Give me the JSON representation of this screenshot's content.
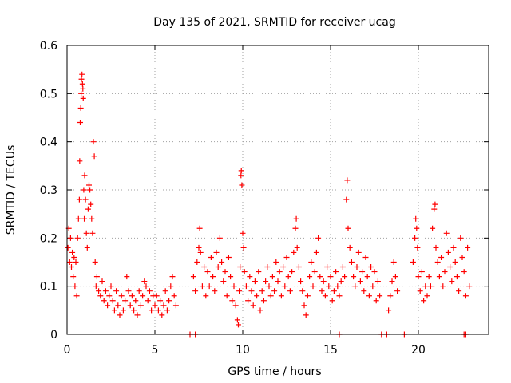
{
  "chart_data": {
    "type": "scatter",
    "title": "Day 135 of 2021, SRMTID for receiver ucag",
    "xlabel": "GPS time / hours",
    "ylabel": "SRMTID / TECUs",
    "xlim": [
      0,
      24
    ],
    "ylim": [
      0,
      0.6
    ],
    "xticks": [
      0,
      5,
      10,
      15,
      20
    ],
    "xtick_labels": [
      "0",
      "5",
      "10",
      "15",
      "20"
    ],
    "yticks": [
      0,
      0.1,
      0.2,
      0.3,
      0.4,
      0.5,
      0.6
    ],
    "ytick_labels": [
      "0",
      "0.1",
      "0.2",
      "0.3",
      "0.4",
      "0.5",
      "0.6"
    ],
    "grid": true,
    "marker": "plus",
    "color": "#ff0000",
    "series": [
      {
        "name": "SRMTID",
        "points": [
          [
            0.05,
            0.18
          ],
          [
            0.1,
            0.22
          ],
          [
            0.15,
            0.15
          ],
          [
            0.2,
            0.2
          ],
          [
            0.25,
            0.14
          ],
          [
            0.3,
            0.17
          ],
          [
            0.35,
            0.12
          ],
          [
            0.4,
            0.16
          ],
          [
            0.45,
            0.1
          ],
          [
            0.5,
            0.15
          ],
          [
            0.55,
            0.08
          ],
          [
            0.6,
            0.2
          ],
          [
            0.65,
            0.24
          ],
          [
            0.7,
            0.28
          ],
          [
            0.72,
            0.36
          ],
          [
            0.75,
            0.44
          ],
          [
            0.78,
            0.47
          ],
          [
            0.8,
            0.5
          ],
          [
            0.82,
            0.53
          ],
          [
            0.85,
            0.54
          ],
          [
            0.88,
            0.52
          ],
          [
            0.9,
            0.51
          ],
          [
            0.92,
            0.49
          ],
          [
            0.95,
            0.3
          ],
          [
            0.98,
            0.24
          ],
          [
            1.0,
            0.33
          ],
          [
            1.05,
            0.28
          ],
          [
            1.1,
            0.21
          ],
          [
            1.15,
            0.18
          ],
          [
            1.2,
            0.26
          ],
          [
            1.25,
            0.31
          ],
          [
            1.3,
            0.3
          ],
          [
            1.35,
            0.27
          ],
          [
            1.4,
            0.24
          ],
          [
            1.45,
            0.21
          ],
          [
            1.5,
            0.4
          ],
          [
            1.55,
            0.37
          ],
          [
            1.6,
            0.15
          ],
          [
            1.65,
            0.1
          ],
          [
            1.7,
            0.12
          ],
          [
            1.8,
            0.09
          ],
          [
            1.9,
            0.08
          ],
          [
            2.0,
            0.11
          ],
          [
            2.1,
            0.07
          ],
          [
            2.2,
            0.09
          ],
          [
            2.3,
            0.06
          ],
          [
            2.4,
            0.08
          ],
          [
            2.5,
            0.1
          ],
          [
            2.6,
            0.07
          ],
          [
            2.7,
            0.05
          ],
          [
            2.8,
            0.09
          ],
          [
            2.9,
            0.06
          ],
          [
            3.0,
            0.04
          ],
          [
            3.1,
            0.08
          ],
          [
            3.2,
            0.05
          ],
          [
            3.3,
            0.07
          ],
          [
            3.4,
            0.12
          ],
          [
            3.5,
            0.09
          ],
          [
            3.6,
            0.06
          ],
          [
            3.7,
            0.08
          ],
          [
            3.8,
            0.05
          ],
          [
            3.9,
            0.07
          ],
          [
            4.0,
            0.04
          ],
          [
            4.1,
            0.09
          ],
          [
            4.2,
            0.06
          ],
          [
            4.3,
            0.08
          ],
          [
            4.4,
            0.11
          ],
          [
            4.5,
            0.1
          ],
          [
            4.6,
            0.07
          ],
          [
            4.7,
            0.09
          ],
          [
            4.8,
            0.05
          ],
          [
            4.9,
            0.08
          ],
          [
            5.0,
            0.06
          ],
          [
            5.1,
            0.08
          ],
          [
            5.2,
            0.05
          ],
          [
            5.3,
            0.07
          ],
          [
            5.4,
            0.04
          ],
          [
            5.5,
            0.06
          ],
          [
            5.6,
            0.09
          ],
          [
            5.7,
            0.05
          ],
          [
            5.8,
            0.07
          ],
          [
            5.9,
            0.1
          ],
          [
            6.0,
            0.12
          ],
          [
            6.1,
            0.08
          ],
          [
            6.2,
            0.06
          ],
          [
            7.0,
            0.0
          ],
          [
            7.3,
            0.0
          ],
          [
            7.2,
            0.12
          ],
          [
            7.3,
            0.09
          ],
          [
            7.4,
            0.15
          ],
          [
            7.5,
            0.18
          ],
          [
            7.55,
            0.22
          ],
          [
            7.6,
            0.17
          ],
          [
            7.7,
            0.1
          ],
          [
            7.8,
            0.14
          ],
          [
            7.9,
            0.08
          ],
          [
            8.0,
            0.13
          ],
          [
            8.1,
            0.1
          ],
          [
            8.2,
            0.16
          ],
          [
            8.3,
            0.12
          ],
          [
            8.4,
            0.09
          ],
          [
            8.5,
            0.17
          ],
          [
            8.6,
            0.14
          ],
          [
            8.7,
            0.2
          ],
          [
            8.8,
            0.15
          ],
          [
            8.9,
            0.11
          ],
          [
            9.0,
            0.13
          ],
          [
            9.1,
            0.08
          ],
          [
            9.2,
            0.16
          ],
          [
            9.3,
            0.12
          ],
          [
            9.4,
            0.07
          ],
          [
            9.5,
            0.1
          ],
          [
            9.6,
            0.06
          ],
          [
            9.7,
            0.03
          ],
          [
            9.75,
            0.02
          ],
          [
            9.8,
            0.09
          ],
          [
            9.85,
            0.14
          ],
          [
            9.9,
            0.33
          ],
          [
            9.92,
            0.34
          ],
          [
            9.95,
            0.31
          ],
          [
            10.0,
            0.21
          ],
          [
            10.05,
            0.18
          ],
          [
            10.1,
            0.13
          ],
          [
            10.2,
            0.1
          ],
          [
            10.3,
            0.07
          ],
          [
            10.4,
            0.12
          ],
          [
            10.5,
            0.09
          ],
          [
            10.6,
            0.06
          ],
          [
            10.7,
            0.11
          ],
          [
            10.8,
            0.08
          ],
          [
            10.9,
            0.13
          ],
          [
            11.0,
            0.05
          ],
          [
            11.1,
            0.09
          ],
          [
            11.2,
            0.07
          ],
          [
            11.3,
            0.11
          ],
          [
            11.4,
            0.14
          ],
          [
            11.5,
            0.1
          ],
          [
            11.6,
            0.08
          ],
          [
            11.7,
            0.12
          ],
          [
            11.8,
            0.09
          ],
          [
            11.9,
            0.15
          ],
          [
            12.0,
            0.11
          ],
          [
            12.1,
            0.13
          ],
          [
            12.2,
            0.08
          ],
          [
            12.3,
            0.14
          ],
          [
            12.4,
            0.1
          ],
          [
            12.5,
            0.16
          ],
          [
            12.6,
            0.12
          ],
          [
            12.7,
            0.09
          ],
          [
            12.8,
            0.13
          ],
          [
            12.9,
            0.17
          ],
          [
            13.0,
            0.22
          ],
          [
            13.05,
            0.24
          ],
          [
            13.1,
            0.18
          ],
          [
            13.2,
            0.14
          ],
          [
            13.3,
            0.11
          ],
          [
            13.4,
            0.09
          ],
          [
            13.5,
            0.06
          ],
          [
            13.6,
            0.04
          ],
          [
            13.7,
            0.08
          ],
          [
            13.8,
            0.12
          ],
          [
            13.9,
            0.15
          ],
          [
            14.0,
            0.1
          ],
          [
            14.1,
            0.13
          ],
          [
            14.2,
            0.17
          ],
          [
            14.3,
            0.2
          ],
          [
            14.4,
            0.12
          ],
          [
            14.5,
            0.09
          ],
          [
            14.6,
            0.11
          ],
          [
            14.7,
            0.08
          ],
          [
            14.8,
            0.14
          ],
          [
            14.9,
            0.1
          ],
          [
            15.0,
            0.12
          ],
          [
            15.1,
            0.07
          ],
          [
            15.2,
            0.09
          ],
          [
            15.3,
            0.13
          ],
          [
            15.4,
            0.1
          ],
          [
            15.5,
            0.08
          ],
          [
            15.5,
            0.0
          ],
          [
            15.6,
            0.11
          ],
          [
            15.7,
            0.14
          ],
          [
            15.8,
            0.12
          ],
          [
            15.9,
            0.28
          ],
          [
            15.95,
            0.32
          ],
          [
            16.0,
            0.22
          ],
          [
            16.1,
            0.18
          ],
          [
            16.2,
            0.15
          ],
          [
            16.3,
            0.12
          ],
          [
            16.4,
            0.1
          ],
          [
            16.5,
            0.14
          ],
          [
            16.6,
            0.17
          ],
          [
            16.7,
            0.11
          ],
          [
            16.8,
            0.13
          ],
          [
            16.9,
            0.09
          ],
          [
            17.0,
            0.16
          ],
          [
            17.1,
            0.12
          ],
          [
            17.2,
            0.08
          ],
          [
            17.3,
            0.14
          ],
          [
            17.4,
            0.1
          ],
          [
            17.5,
            0.13
          ],
          [
            17.6,
            0.07
          ],
          [
            17.7,
            0.11
          ],
          [
            17.8,
            0.08
          ],
          [
            17.9,
            0.0
          ],
          [
            18.3,
            0.05
          ],
          [
            18.4,
            0.08
          ],
          [
            18.5,
            0.11
          ],
          [
            18.6,
            0.15
          ],
          [
            18.7,
            0.12
          ],
          [
            18.8,
            0.09
          ],
          [
            18.2,
            0.0
          ],
          [
            19.2,
            0.0
          ],
          [
            19.7,
            0.15
          ],
          [
            19.8,
            0.2
          ],
          [
            19.85,
            0.24
          ],
          [
            19.9,
            0.22
          ],
          [
            19.95,
            0.18
          ],
          [
            20.0,
            0.12
          ],
          [
            20.1,
            0.09
          ],
          [
            20.2,
            0.13
          ],
          [
            20.3,
            0.07
          ],
          [
            20.4,
            0.1
          ],
          [
            20.5,
            0.08
          ],
          [
            20.6,
            0.12
          ],
          [
            20.7,
            0.1
          ],
          [
            20.8,
            0.22
          ],
          [
            20.9,
            0.26
          ],
          [
            20.95,
            0.27
          ],
          [
            21.0,
            0.18
          ],
          [
            21.1,
            0.15
          ],
          [
            21.2,
            0.12
          ],
          [
            21.3,
            0.16
          ],
          [
            21.4,
            0.1
          ],
          [
            21.5,
            0.13
          ],
          [
            21.6,
            0.21
          ],
          [
            21.7,
            0.17
          ],
          [
            21.8,
            0.14
          ],
          [
            21.9,
            0.11
          ],
          [
            22.0,
            0.18
          ],
          [
            22.1,
            0.15
          ],
          [
            22.2,
            0.12
          ],
          [
            22.3,
            0.09
          ],
          [
            22.4,
            0.2
          ],
          [
            22.5,
            0.16
          ],
          [
            22.6,
            0.13
          ],
          [
            22.7,
            0.08
          ],
          [
            22.8,
            0.18
          ],
          [
            22.9,
            0.1
          ],
          [
            22.6,
            0.0
          ],
          [
            22.7,
            0.0
          ]
        ]
      }
    ]
  }
}
